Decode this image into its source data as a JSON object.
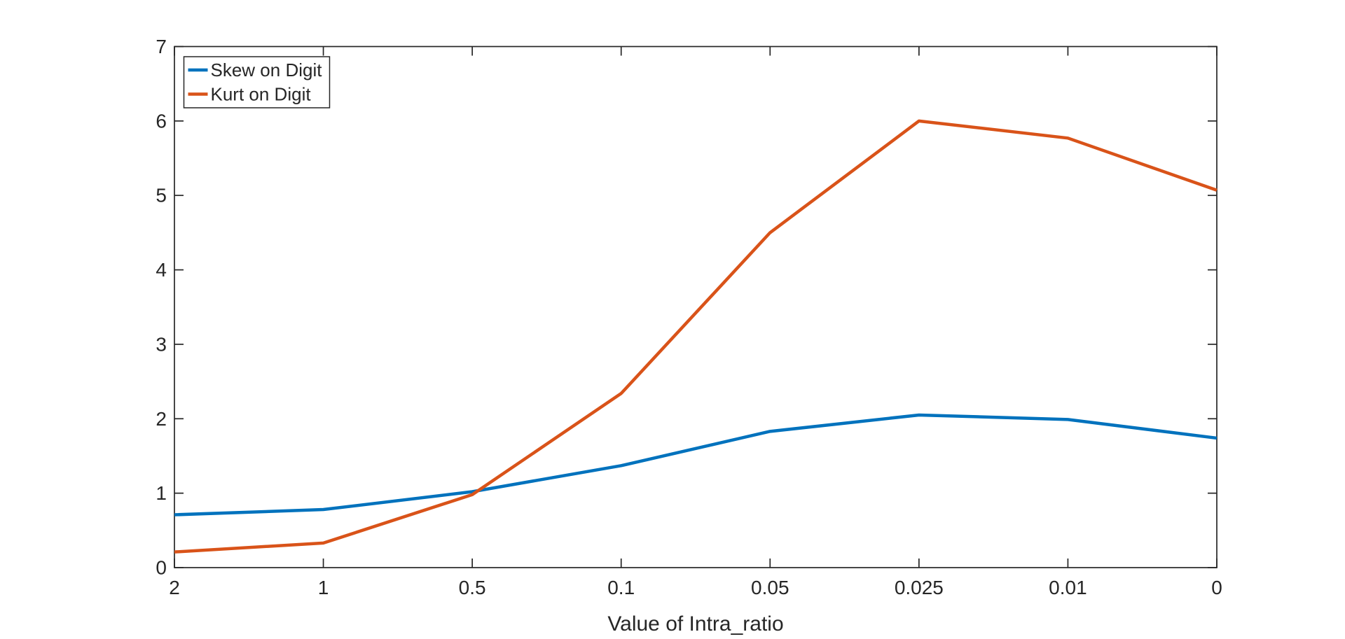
{
  "figure": {
    "background": "#ffffff"
  },
  "chart_data": {
    "type": "line",
    "title": "",
    "xlabel": "Value of Intra_ratio",
    "ylabel": "",
    "categories": [
      "2",
      "1",
      "0.5",
      "0.1",
      "0.05",
      "0.025",
      "0.01",
      "0"
    ],
    "series": [
      {
        "name": "Skew on Digit",
        "color": "#0072BD",
        "values": [
          0.71,
          0.78,
          1.02,
          1.37,
          1.83,
          2.05,
          1.99,
          1.74
        ]
      },
      {
        "name": "Kurt on Digit",
        "color": "#D95319",
        "values": [
          0.21,
          0.33,
          0.98,
          2.34,
          4.5,
          6.0,
          5.77,
          5.07
        ]
      }
    ],
    "ylim": [
      0,
      7
    ],
    "yticks": [
      "0",
      "1",
      "2",
      "3",
      "4",
      "5",
      "6",
      "7"
    ],
    "xlim_note": "categorical equal spacing",
    "grid": false,
    "box": true,
    "tick_direction": "in",
    "legend": {
      "position": "top-left",
      "border": true,
      "entries": [
        "Skew on Digit",
        "Kurt on Digit"
      ]
    },
    "axis_color": "#262626"
  }
}
